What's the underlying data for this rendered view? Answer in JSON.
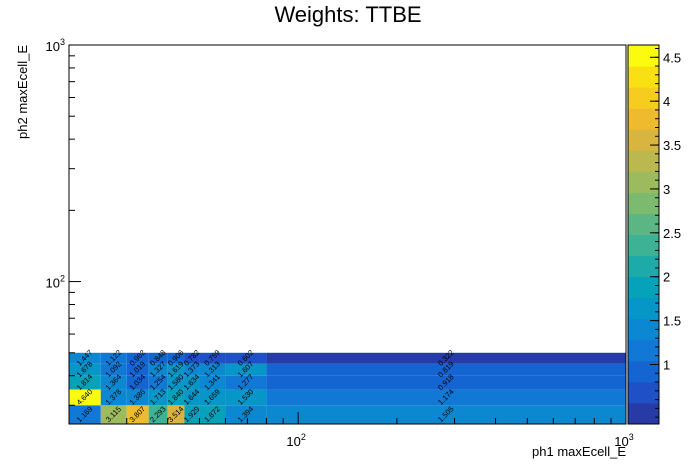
{
  "title": "Weights: TTBE",
  "chart_data": {
    "type": "heatmap",
    "title": "Weights: TTBE",
    "xlabel": "ph1 maxEcell_E",
    "ylabel": "ph2 maxEcell_E",
    "x_scale": "log",
    "y_scale": "log",
    "xlim": [
      20,
      1000
    ],
    "ylim": [
      25,
      1000
    ],
    "x_ticks": [
      {
        "value": 100,
        "base": "10",
        "exp": "2"
      },
      {
        "value": 1000,
        "base": "10",
        "exp": "3"
      }
    ],
    "y_ticks": [
      {
        "value": 100,
        "base": "10",
        "exp": "2"
      },
      {
        "value": 1000,
        "base": "10",
        "exp": "3"
      }
    ],
    "x_bin_edges": [
      20,
      25,
      30,
      35,
      40,
      45,
      50,
      60,
      80,
      1000
    ],
    "y_bin_edges": [
      25,
      30,
      35,
      40,
      45,
      50,
      60,
      1000
    ],
    "cells": [
      {
        "ix": 0,
        "iy": 0,
        "v": 1.169,
        "label": "1.169"
      },
      {
        "ix": 1,
        "iy": 0,
        "v": 3.115,
        "label": "3.115"
      },
      {
        "ix": 2,
        "iy": 0,
        "v": 3.807,
        "label": "3.807"
      },
      {
        "ix": 3,
        "iy": 0,
        "v": 2.293,
        "label": "2.293"
      },
      {
        "ix": 4,
        "iy": 0,
        "v": 3.514,
        "label": "3.514"
      },
      {
        "ix": 5,
        "iy": 0,
        "v": 1.929,
        "label": "1.929"
      },
      {
        "ix": 6,
        "iy": 0,
        "v": 1.872,
        "label": "1.872"
      },
      {
        "ix": 7,
        "iy": 0,
        "v": 1.394,
        "label": "1.394"
      },
      {
        "ix": 8,
        "iy": 0,
        "v": 1.505,
        "label": "1.505"
      },
      {
        "ix": 0,
        "iy": 1,
        "v": 4.64,
        "label": "4.640"
      },
      {
        "ix": 1,
        "iy": 1,
        "v": 1.378,
        "label": "1.378"
      },
      {
        "ix": 2,
        "iy": 1,
        "v": 1.386,
        "label": "1.386"
      },
      {
        "ix": 3,
        "iy": 1,
        "v": 1.713,
        "label": "1.713"
      },
      {
        "ix": 4,
        "iy": 1,
        "v": 1.84,
        "label": "1.840"
      },
      {
        "ix": 5,
        "iy": 1,
        "v": 1.644,
        "label": "1.644"
      },
      {
        "ix": 6,
        "iy": 1,
        "v": 1.659,
        "label": "1.659"
      },
      {
        "ix": 7,
        "iy": 1,
        "v": 1.53,
        "label": "1.530"
      },
      {
        "ix": 8,
        "iy": 1,
        "v": 1.174,
        "label": "1.174"
      },
      {
        "ix": 0,
        "iy": 2,
        "v": 1.814,
        "label": "1.814"
      },
      {
        "ix": 1,
        "iy": 2,
        "v": 1.364,
        "label": "1.364"
      },
      {
        "ix": 2,
        "iy": 2,
        "v": 1.034,
        "label": "1.034"
      },
      {
        "ix": 3,
        "iy": 2,
        "v": 1.254,
        "label": "1.254"
      },
      {
        "ix": 4,
        "iy": 2,
        "v": 1.58,
        "label": "1.580"
      },
      {
        "ix": 5,
        "iy": 2,
        "v": 1.634,
        "label": "1.634"
      },
      {
        "ix": 6,
        "iy": 2,
        "v": 1.341,
        "label": "1.341"
      },
      {
        "ix": 7,
        "iy": 2,
        "v": 1.277,
        "label": "1.277"
      },
      {
        "ix": 8,
        "iy": 2,
        "v": 0.918,
        "label": "0.918"
      },
      {
        "ix": 0,
        "iy": 3,
        "v": 1.678,
        "label": "1.678"
      },
      {
        "ix": 1,
        "iy": 3,
        "v": 1.092,
        "label": "1.092"
      },
      {
        "ix": 2,
        "iy": 3,
        "v": 1.019,
        "label": "1.019"
      },
      {
        "ix": 3,
        "iy": 3,
        "v": 1.327,
        "label": "1.327"
      },
      {
        "ix": 4,
        "iy": 3,
        "v": 1.619,
        "label": "1.619"
      },
      {
        "ix": 5,
        "iy": 3,
        "v": 1.373,
        "label": "1.373"
      },
      {
        "ix": 6,
        "iy": 3,
        "v": 1.313,
        "label": "1.313"
      },
      {
        "ix": 7,
        "iy": 3,
        "v": 1.607,
        "label": "1.607"
      },
      {
        "ix": 8,
        "iy": 3,
        "v": 0.819,
        "label": "0.819"
      },
      {
        "ix": 0,
        "iy": 4,
        "v": 1.447,
        "label": "1.447"
      },
      {
        "ix": 1,
        "iy": 4,
        "v": 1.122,
        "label": "1.122"
      },
      {
        "ix": 2,
        "iy": 4,
        "v": 0.962,
        "label": "0.962"
      },
      {
        "ix": 3,
        "iy": 4,
        "v": 0.848,
        "label": "0.848"
      },
      {
        "ix": 4,
        "iy": 4,
        "v": 0.906,
        "label": "0.906"
      },
      {
        "ix": 5,
        "iy": 4,
        "v": 0.782,
        "label": "0.782"
      },
      {
        "ix": 6,
        "iy": 4,
        "v": 0.759,
        "label": "0.759"
      },
      {
        "ix": 7,
        "iy": 4,
        "v": 0.602,
        "label": "0.602"
      },
      {
        "ix": 8,
        "iy": 4,
        "v": 0.322,
        "label": "0.322"
      }
    ],
    "z_range": [
      0.322,
      4.64
    ],
    "colorbar": {
      "ticks": [
        "1",
        "1.5",
        "2",
        "2.5",
        "3",
        "3.5",
        "4",
        "4.5"
      ],
      "tick_values": [
        1,
        1.5,
        2,
        2.5,
        3,
        3.5,
        4,
        4.5
      ],
      "colors": [
        "#263ba6",
        "#1f50c5",
        "#1464d2",
        "#1278d6",
        "#0c88d2",
        "#0696c7",
        "#06a2ba",
        "#1eaaa8",
        "#3eb294",
        "#5cb683",
        "#7cba70",
        "#9cbb5f",
        "#bcb850",
        "#d8b53e",
        "#eebb2e",
        "#f6cc1e",
        "#f9e013",
        "#fafb0e"
      ]
    },
    "grid": false,
    "legend": "none"
  }
}
